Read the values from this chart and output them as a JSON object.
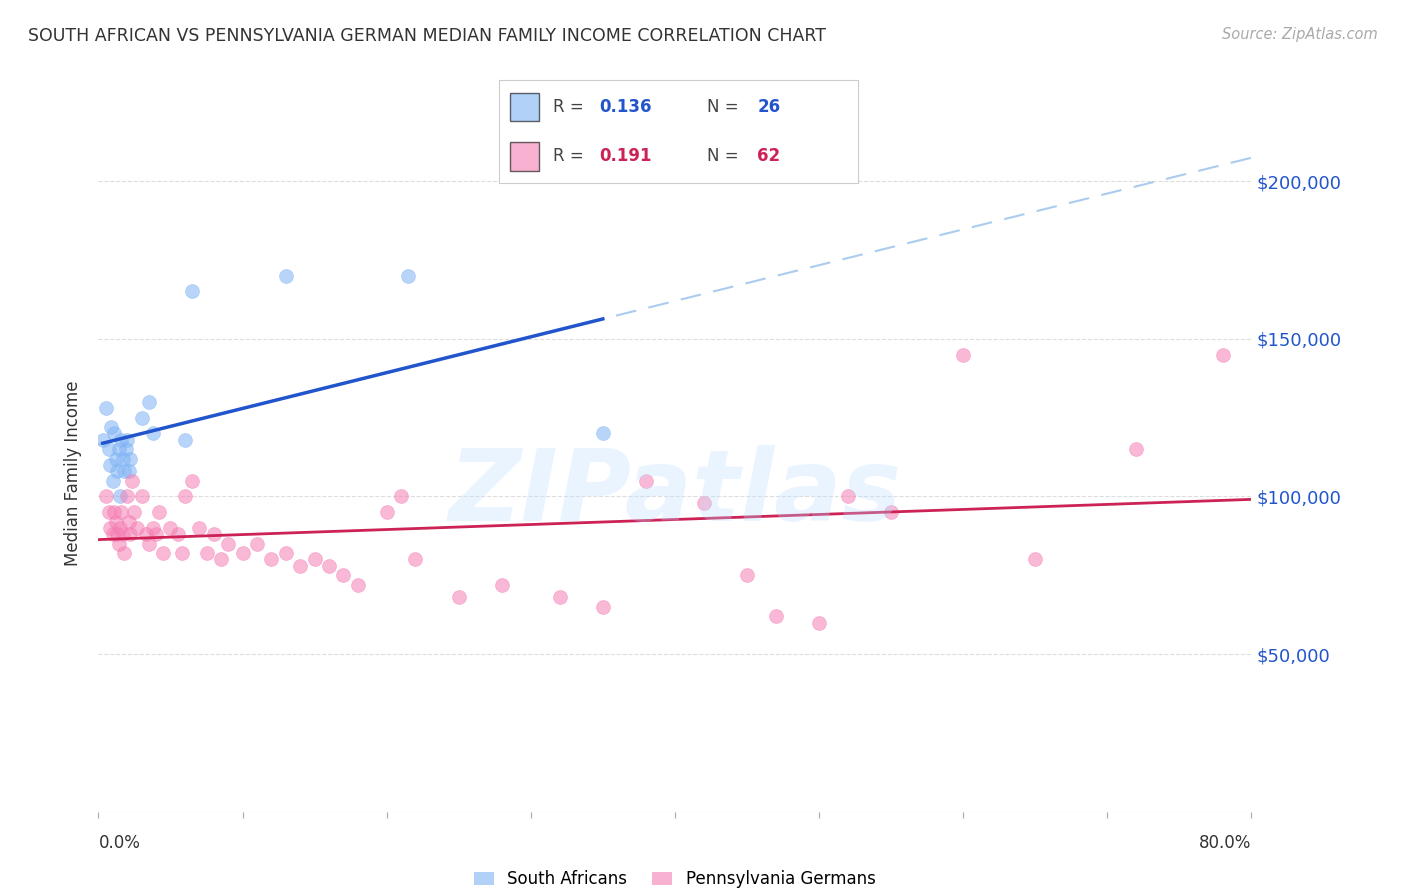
{
  "title": "SOUTH AFRICAN VS PENNSYLVANIA GERMAN MEDIAN FAMILY INCOME CORRELATION CHART",
  "source": "Source: ZipAtlas.com",
  "ylabel": "Median Family Income",
  "ytick_labels": [
    "$50,000",
    "$100,000",
    "$150,000",
    "$200,000"
  ],
  "ytick_values": [
    50000,
    100000,
    150000,
    200000
  ],
  "ylim": [
    0,
    215000
  ],
  "xlim": [
    0.0,
    0.8
  ],
  "watermark": "ZIPatlas",
  "legend_r1": "0.136",
  "legend_n1": "26",
  "legend_r2": "0.191",
  "legend_n2": "62",
  "color_blue": "#7EB3F5",
  "color_pink": "#F57EB3",
  "color_blue_line": "#2255CC",
  "color_pink_line": "#CC2255",
  "color_blue_dashed": "#AACCEE",
  "color_label_blue": "#2255CC",
  "color_label_pink": "#CC2255",
  "color_grid": "#DDDDDD",
  "color_title": "#333333",
  "color_source": "#AAAAAA",
  "south_africans_x": [
    0.003,
    0.005,
    0.007,
    0.008,
    0.009,
    0.01,
    0.011,
    0.012,
    0.013,
    0.014,
    0.015,
    0.016,
    0.017,
    0.018,
    0.019,
    0.02,
    0.021,
    0.022,
    0.03,
    0.035,
    0.038,
    0.06,
    0.065,
    0.13,
    0.215,
    0.35
  ],
  "south_africans_y": [
    118000,
    128000,
    115000,
    110000,
    122000,
    105000,
    120000,
    112000,
    108000,
    115000,
    100000,
    118000,
    112000,
    108000,
    115000,
    118000,
    108000,
    112000,
    125000,
    130000,
    120000,
    118000,
    165000,
    170000,
    170000,
    120000
  ],
  "penn_german_x": [
    0.005,
    0.007,
    0.008,
    0.01,
    0.011,
    0.012,
    0.013,
    0.014,
    0.015,
    0.016,
    0.017,
    0.018,
    0.02,
    0.021,
    0.022,
    0.023,
    0.025,
    0.027,
    0.03,
    0.033,
    0.035,
    0.038,
    0.04,
    0.042,
    0.045,
    0.05,
    0.055,
    0.058,
    0.06,
    0.065,
    0.07,
    0.075,
    0.08,
    0.085,
    0.09,
    0.1,
    0.11,
    0.12,
    0.13,
    0.14,
    0.15,
    0.16,
    0.17,
    0.18,
    0.2,
    0.21,
    0.22,
    0.25,
    0.28,
    0.32,
    0.35,
    0.38,
    0.42,
    0.45,
    0.47,
    0.5,
    0.52,
    0.55,
    0.6,
    0.65,
    0.72,
    0.78
  ],
  "penn_german_y": [
    100000,
    95000,
    90000,
    88000,
    95000,
    92000,
    88000,
    85000,
    90000,
    95000,
    88000,
    82000,
    100000,
    92000,
    88000,
    105000,
    95000,
    90000,
    100000,
    88000,
    85000,
    90000,
    88000,
    95000,
    82000,
    90000,
    88000,
    82000,
    100000,
    105000,
    90000,
    82000,
    88000,
    80000,
    85000,
    82000,
    85000,
    80000,
    82000,
    78000,
    80000,
    78000,
    75000,
    72000,
    95000,
    100000,
    80000,
    68000,
    72000,
    68000,
    65000,
    105000,
    98000,
    75000,
    62000,
    60000,
    100000,
    95000,
    145000,
    80000,
    115000,
    145000
  ],
  "x_tick_positions": [
    0.0,
    0.1,
    0.2,
    0.3,
    0.4,
    0.5,
    0.6,
    0.7,
    0.8
  ]
}
